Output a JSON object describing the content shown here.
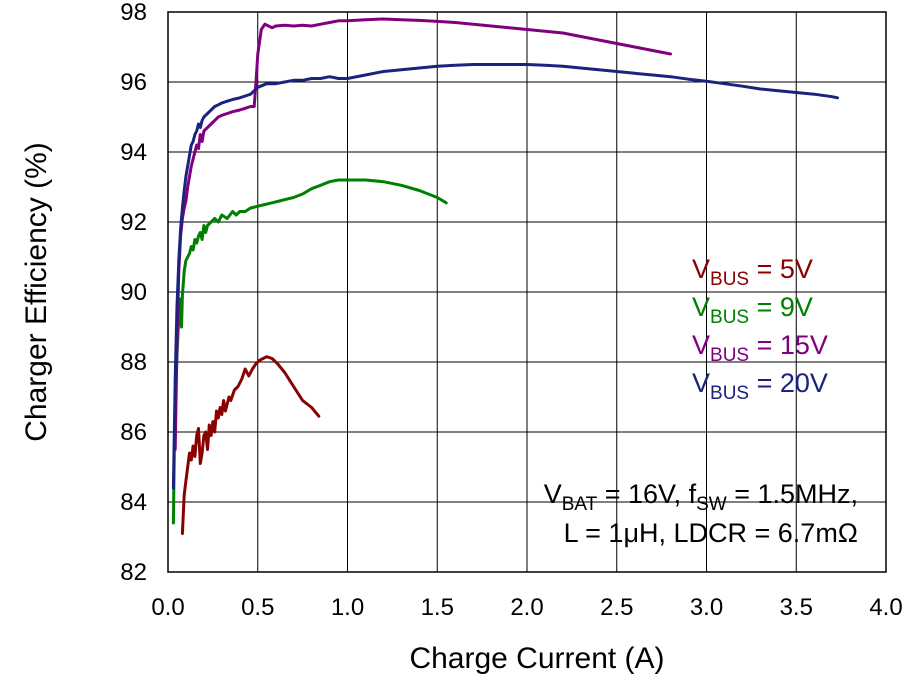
{
  "chart_data": {
    "type": "line",
    "title": "",
    "xlabel": "Charge Current (A)",
    "ylabel": "Charger Efficiency (%)",
    "xlim": [
      0,
      4
    ],
    "ylim": [
      82,
      98
    ],
    "xticks": [
      "0.0",
      "0.5",
      "1.0",
      "1.5",
      "2.0",
      "2.5",
      "3.0",
      "3.5",
      "4.0"
    ],
    "yticks": [
      "82",
      "84",
      "86",
      "88",
      "90",
      "92",
      "94",
      "96",
      "98"
    ],
    "grid": true,
    "legend_position": "right",
    "series": [
      {
        "name": "VBUS = 5V",
        "label_main": "V",
        "label_sub": "BUS",
        "label_tail": " = 5V",
        "color": "#8B0000",
        "x": [
          0.08,
          0.09,
          0.1,
          0.11,
          0.12,
          0.13,
          0.14,
          0.15,
          0.16,
          0.17,
          0.18,
          0.19,
          0.2,
          0.21,
          0.22,
          0.23,
          0.24,
          0.25,
          0.26,
          0.27,
          0.28,
          0.29,
          0.3,
          0.31,
          0.32,
          0.33,
          0.34,
          0.35,
          0.37,
          0.39,
          0.41,
          0.43,
          0.45,
          0.47,
          0.49,
          0.51,
          0.53,
          0.55,
          0.58,
          0.61,
          0.65,
          0.7,
          0.75,
          0.8,
          0.84
        ],
        "y": [
          83.1,
          84.2,
          84.6,
          85.0,
          85.4,
          85.2,
          85.6,
          85.3,
          85.9,
          86.1,
          85.1,
          85.4,
          85.9,
          86.0,
          85.5,
          86.2,
          85.9,
          86.3,
          86.0,
          86.6,
          86.4,
          86.7,
          86.5,
          86.9,
          86.6,
          86.8,
          87.0,
          86.9,
          87.2,
          87.3,
          87.5,
          87.8,
          87.6,
          87.8,
          87.95,
          88.05,
          88.1,
          88.15,
          88.1,
          87.95,
          87.7,
          87.3,
          86.9,
          86.7,
          86.45
        ]
      },
      {
        "name": "VBUS = 9V",
        "label_main": "V",
        "label_sub": "BUS",
        "label_tail": " = 9V",
        "color": "#008000",
        "x": [
          0.03,
          0.035,
          0.04,
          0.045,
          0.05,
          0.06,
          0.07,
          0.075,
          0.08,
          0.09,
          0.1,
          0.11,
          0.12,
          0.13,
          0.14,
          0.15,
          0.16,
          0.17,
          0.18,
          0.19,
          0.2,
          0.21,
          0.22,
          0.24,
          0.26,
          0.28,
          0.3,
          0.33,
          0.36,
          0.38,
          0.4,
          0.43,
          0.46,
          0.5,
          0.54,
          0.58,
          0.62,
          0.66,
          0.7,
          0.75,
          0.8,
          0.85,
          0.9,
          0.95,
          1.0,
          1.1,
          1.2,
          1.3,
          1.4,
          1.5,
          1.55
        ],
        "y": [
          83.4,
          85.5,
          86.7,
          87.5,
          88.2,
          89.3,
          89.8,
          89.0,
          89.9,
          90.6,
          90.9,
          91.0,
          91.1,
          91.3,
          91.2,
          91.5,
          91.4,
          91.6,
          91.7,
          91.5,
          91.9,
          91.7,
          91.9,
          92.0,
          92.1,
          92.0,
          92.2,
          92.1,
          92.3,
          92.2,
          92.3,
          92.3,
          92.4,
          92.45,
          92.5,
          92.55,
          92.6,
          92.65,
          92.7,
          92.8,
          92.95,
          93.05,
          93.15,
          93.2,
          93.2,
          93.2,
          93.15,
          93.05,
          92.9,
          92.7,
          92.55
        ]
      },
      {
        "name": "VBUS = 15V",
        "label_main": "V",
        "label_sub": "BUS",
        "label_tail": " = 15V",
        "color": "#800080",
        "x": [
          0.04,
          0.05,
          0.06,
          0.07,
          0.08,
          0.09,
          0.1,
          0.11,
          0.12,
          0.13,
          0.14,
          0.15,
          0.16,
          0.17,
          0.18,
          0.19,
          0.2,
          0.22,
          0.24,
          0.26,
          0.28,
          0.3,
          0.33,
          0.36,
          0.4,
          0.43,
          0.46,
          0.48,
          0.49,
          0.5,
          0.52,
          0.54,
          0.56,
          0.58,
          0.6,
          0.65,
          0.7,
          0.75,
          0.8,
          0.85,
          0.9,
          0.95,
          1.0,
          1.1,
          1.2,
          1.3,
          1.4,
          1.5,
          1.6,
          1.7,
          1.8,
          1.9,
          2.0,
          2.1,
          2.2,
          2.3,
          2.4,
          2.5,
          2.6,
          2.7,
          2.8
        ],
        "y": [
          85.5,
          88.5,
          90.6,
          91.6,
          92.1,
          92.4,
          92.6,
          93.0,
          93.3,
          93.6,
          93.8,
          94.0,
          94.2,
          94.1,
          94.5,
          94.3,
          94.6,
          94.7,
          94.8,
          94.9,
          95.0,
          95.05,
          95.1,
          95.15,
          95.2,
          95.25,
          95.3,
          95.3,
          96.0,
          96.8,
          97.5,
          97.65,
          97.6,
          97.55,
          97.6,
          97.62,
          97.6,
          97.62,
          97.6,
          97.65,
          97.7,
          97.75,
          97.75,
          97.78,
          97.8,
          97.78,
          97.76,
          97.73,
          97.7,
          97.65,
          97.6,
          97.55,
          97.5,
          97.45,
          97.4,
          97.3,
          97.2,
          97.1,
          97.0,
          96.9,
          96.8
        ]
      },
      {
        "name": "VBUS = 20V",
        "label_main": "V",
        "label_sub": "BUS",
        "label_tail": " = 20V",
        "color": "#1A237E",
        "x": [
          0.03,
          0.04,
          0.05,
          0.06,
          0.07,
          0.08,
          0.09,
          0.1,
          0.11,
          0.12,
          0.13,
          0.14,
          0.15,
          0.16,
          0.17,
          0.18,
          0.19,
          0.2,
          0.22,
          0.24,
          0.26,
          0.28,
          0.3,
          0.33,
          0.36,
          0.4,
          0.43,
          0.46,
          0.5,
          0.55,
          0.6,
          0.65,
          0.7,
          0.75,
          0.8,
          0.85,
          0.9,
          0.95,
          1.0,
          1.1,
          1.2,
          1.3,
          1.4,
          1.5,
          1.6,
          1.7,
          1.8,
          1.9,
          2.0,
          2.1,
          2.2,
          2.3,
          2.4,
          2.5,
          2.6,
          2.7,
          2.8,
          2.9,
          3.0,
          3.1,
          3.2,
          3.3,
          3.4,
          3.5,
          3.6,
          3.7,
          3.73
        ],
        "y": [
          84.4,
          87.5,
          89.6,
          90.9,
          91.8,
          92.4,
          92.9,
          93.3,
          93.6,
          93.9,
          94.2,
          94.3,
          94.5,
          94.6,
          94.8,
          94.7,
          94.9,
          95.0,
          95.1,
          95.2,
          95.3,
          95.35,
          95.4,
          95.45,
          95.5,
          95.55,
          95.6,
          95.65,
          95.85,
          95.95,
          95.95,
          96.0,
          96.05,
          96.05,
          96.1,
          96.1,
          96.15,
          96.1,
          96.1,
          96.2,
          96.3,
          96.35,
          96.4,
          96.45,
          96.48,
          96.5,
          96.5,
          96.5,
          96.5,
          96.48,
          96.45,
          96.4,
          96.35,
          96.3,
          96.25,
          96.2,
          96.15,
          96.08,
          96.02,
          95.95,
          95.88,
          95.8,
          95.75,
          95.7,
          95.65,
          95.58,
          95.55
        ]
      }
    ],
    "annotation": {
      "line1_a": "V",
      "line1_a_sub": "BAT",
      "line1_b": " = 16V, f",
      "line1_b_sub": "SW",
      "line1_c": " = 1.5MHz,",
      "line2": "L = 1μH, LDCR = 6.7mΩ"
    }
  }
}
